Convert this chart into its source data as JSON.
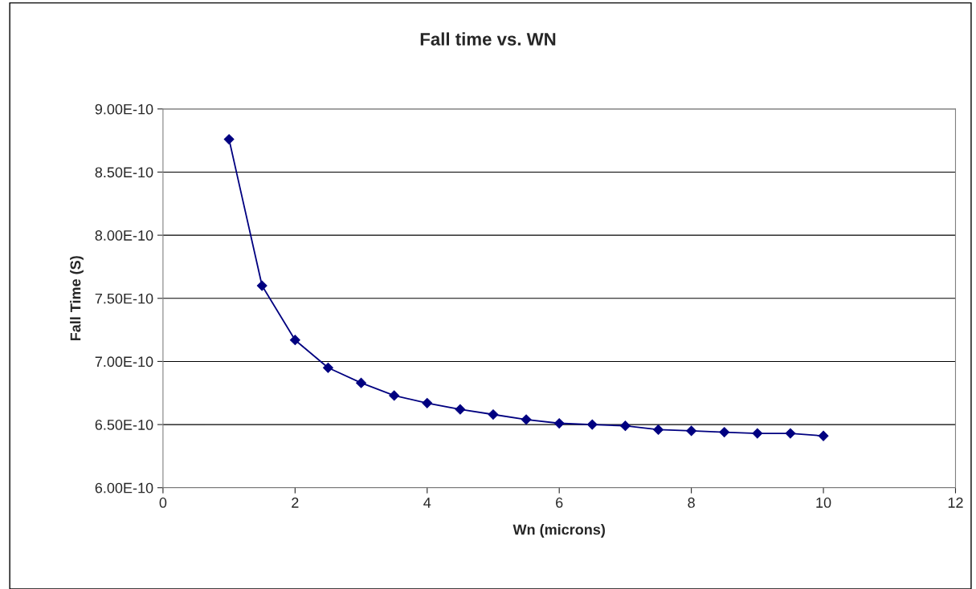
{
  "chart_data": {
    "type": "line",
    "title": "Fall time vs. WN",
    "xlabel": "Wn (microns)",
    "ylabel": "Fall Time (S)",
    "x": [
      1,
      1.5,
      2,
      2.5,
      3,
      3.5,
      4,
      4.5,
      5,
      5.5,
      6,
      6.5,
      7,
      7.5,
      8,
      8.5,
      9,
      9.5,
      10
    ],
    "series": [
      {
        "color": "#000080",
        "values": [
          8.76e-10,
          7.6e-10,
          7.17e-10,
          6.95e-10,
          6.83e-10,
          6.73e-10,
          6.67e-10,
          6.62e-10,
          6.58e-10,
          6.54e-10,
          6.51e-10,
          6.5e-10,
          6.49e-10,
          6.46e-10,
          6.45e-10,
          6.44e-10,
          6.43e-10,
          6.43e-10,
          6.41e-10
        ]
      }
    ],
    "xlim": [
      0,
      12
    ],
    "xticks": [
      0,
      2,
      4,
      6,
      8,
      10,
      12
    ],
    "ylim": [
      6e-10,
      9e-10
    ],
    "yticks": [
      {
        "value": 6e-10,
        "label": "6.00E-10"
      },
      {
        "value": 6.5e-10,
        "label": "6.50E-10"
      },
      {
        "value": 7e-10,
        "label": "7.00E-10"
      },
      {
        "value": 7.5e-10,
        "label": "7.50E-10"
      },
      {
        "value": 8e-10,
        "label": "8.00E-10"
      },
      {
        "value": 8.5e-10,
        "label": "8.50E-10"
      },
      {
        "value": 9e-10,
        "label": "9.00E-10"
      }
    ],
    "grid": "y",
    "marker": "diamond",
    "line_style": "solid"
  }
}
